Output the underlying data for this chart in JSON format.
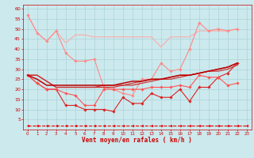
{
  "background_color": "#cce9ed",
  "grid_color": "#aad4d9",
  "xlabel": "Vent moyen/en rafales ( km/h )",
  "xlim": [
    -0.5,
    23.5
  ],
  "ylim": [
    0,
    62
  ],
  "yticks": [
    5,
    10,
    15,
    20,
    25,
    30,
    35,
    40,
    45,
    50,
    55,
    60
  ],
  "xticks": [
    0,
    1,
    2,
    3,
    4,
    5,
    6,
    7,
    8,
    9,
    10,
    11,
    12,
    13,
    14,
    15,
    16,
    17,
    18,
    19,
    20,
    21,
    22,
    23
  ],
  "series": [
    {
      "color": "#ffaaaa",
      "lw": 0.8,
      "marker": null,
      "data": [
        [
          0,
          57
        ],
        [
          1,
          48
        ],
        [
          2,
          44
        ],
        [
          3,
          49
        ],
        [
          4,
          43
        ],
        [
          5,
          47
        ],
        [
          6,
          47
        ],
        [
          7,
          46
        ],
        [
          8,
          46
        ],
        [
          9,
          46
        ],
        [
          10,
          46
        ],
        [
          11,
          46
        ],
        [
          12,
          46
        ],
        [
          13,
          46
        ],
        [
          14,
          41
        ],
        [
          15,
          46
        ],
        [
          16,
          46
        ],
        [
          17,
          46
        ],
        [
          18,
          49
        ],
        [
          19,
          49
        ],
        [
          20,
          49
        ],
        [
          21,
          49
        ],
        [
          22,
          50
        ]
      ]
    },
    {
      "color": "#ff8888",
      "lw": 0.8,
      "marker": "D",
      "markersize": 1.8,
      "data": [
        [
          0,
          57
        ],
        [
          1,
          48
        ],
        [
          2,
          44
        ],
        [
          3,
          49
        ],
        [
          4,
          38
        ],
        [
          5,
          34
        ],
        [
          6,
          34
        ],
        [
          7,
          35
        ],
        [
          8,
          21
        ],
        [
          9,
          20
        ],
        [
          10,
          18
        ],
        [
          11,
          17
        ],
        [
          12,
          25
        ],
        [
          13,
          25
        ],
        [
          14,
          33
        ],
        [
          15,
          29
        ],
        [
          16,
          30
        ],
        [
          17,
          40
        ],
        [
          18,
          53
        ],
        [
          19,
          49
        ],
        [
          20,
          50
        ],
        [
          21,
          49
        ],
        [
          22,
          50
        ]
      ]
    },
    {
      "color": "#cc3333",
      "lw": 0.9,
      "marker": null,
      "data": [
        [
          0,
          27
        ],
        [
          1,
          27
        ],
        [
          2,
          24
        ],
        [
          3,
          21
        ],
        [
          4,
          21
        ],
        [
          5,
          21
        ],
        [
          6,
          21
        ],
        [
          7,
          21
        ],
        [
          8,
          21
        ],
        [
          9,
          21
        ],
        [
          10,
          22
        ],
        [
          11,
          22
        ],
        [
          12,
          23
        ],
        [
          13,
          24
        ],
        [
          14,
          25
        ],
        [
          15,
          25
        ],
        [
          16,
          26
        ],
        [
          17,
          27
        ],
        [
          18,
          28
        ],
        [
          19,
          29
        ],
        [
          20,
          29
        ],
        [
          21,
          30
        ],
        [
          22,
          32
        ]
      ]
    },
    {
      "color": "#cc3333",
      "lw": 0.9,
      "marker": null,
      "data": [
        [
          0,
          27
        ],
        [
          1,
          27
        ],
        [
          2,
          24
        ],
        [
          3,
          21
        ],
        [
          4,
          21
        ],
        [
          5,
          21
        ],
        [
          6,
          21
        ],
        [
          7,
          21
        ],
        [
          8,
          22
        ],
        [
          9,
          22
        ],
        [
          10,
          22
        ],
        [
          11,
          23
        ],
        [
          12,
          24
        ],
        [
          13,
          25
        ],
        [
          14,
          25
        ],
        [
          15,
          26
        ],
        [
          16,
          27
        ],
        [
          17,
          27
        ],
        [
          18,
          28
        ],
        [
          19,
          29
        ],
        [
          20,
          30
        ],
        [
          21,
          31
        ],
        [
          22,
          33
        ]
      ]
    },
    {
      "color": "#dd2222",
      "lw": 0.8,
      "marker": "D",
      "markersize": 1.8,
      "data": [
        [
          0,
          27
        ],
        [
          1,
          23
        ],
        [
          2,
          20
        ],
        [
          3,
          20
        ],
        [
          4,
          12
        ],
        [
          5,
          12
        ],
        [
          6,
          10
        ],
        [
          7,
          10
        ],
        [
          8,
          10
        ],
        [
          9,
          9
        ],
        [
          10,
          16
        ],
        [
          11,
          13
        ],
        [
          12,
          13
        ],
        [
          13,
          18
        ],
        [
          14,
          16
        ],
        [
          15,
          16
        ],
        [
          16,
          20
        ],
        [
          17,
          14
        ],
        [
          18,
          21
        ],
        [
          19,
          21
        ],
        [
          20,
          26
        ],
        [
          21,
          28
        ],
        [
          22,
          33
        ]
      ]
    },
    {
      "color": "#ff5555",
      "lw": 0.8,
      "marker": "D",
      "markersize": 1.8,
      "data": [
        [
          0,
          27
        ],
        [
          1,
          23
        ],
        [
          2,
          20
        ],
        [
          3,
          20
        ],
        [
          4,
          18
        ],
        [
          5,
          17
        ],
        [
          6,
          12
        ],
        [
          7,
          12
        ],
        [
          8,
          20
        ],
        [
          9,
          20
        ],
        [
          10,
          20
        ],
        [
          11,
          20
        ],
        [
          12,
          20
        ],
        [
          13,
          21
        ],
        [
          14,
          21
        ],
        [
          15,
          21
        ],
        [
          16,
          22
        ],
        [
          17,
          21
        ],
        [
          18,
          27
        ],
        [
          19,
          26
        ],
        [
          20,
          26
        ],
        [
          21,
          22
        ],
        [
          22,
          23
        ]
      ]
    },
    {
      "color": "#bb0000",
      "lw": 1.1,
      "marker": null,
      "data": [
        [
          0,
          27
        ],
        [
          1,
          25
        ],
        [
          2,
          22
        ],
        [
          3,
          22
        ],
        [
          4,
          22
        ],
        [
          5,
          22
        ],
        [
          6,
          22
        ],
        [
          7,
          22
        ],
        [
          8,
          22
        ],
        [
          9,
          22
        ],
        [
          10,
          23
        ],
        [
          11,
          24
        ],
        [
          12,
          24
        ],
        [
          13,
          25
        ],
        [
          14,
          25
        ],
        [
          15,
          26
        ],
        [
          16,
          27
        ],
        [
          17,
          27
        ],
        [
          18,
          28
        ],
        [
          19,
          29
        ],
        [
          20,
          30
        ],
        [
          21,
          31
        ],
        [
          22,
          33
        ]
      ]
    },
    {
      "color": "#ee0000",
      "lw": 0.8,
      "marker": "<",
      "markersize": 2.0,
      "linestyle": "dashed",
      "data": [
        [
          0,
          2
        ],
        [
          1,
          2
        ],
        [
          2,
          2
        ],
        [
          3,
          2
        ],
        [
          4,
          2
        ],
        [
          5,
          2
        ],
        [
          6,
          2
        ],
        [
          7,
          2
        ],
        [
          8,
          2
        ],
        [
          9,
          2
        ],
        [
          10,
          2
        ],
        [
          11,
          2
        ],
        [
          12,
          2
        ],
        [
          13,
          2
        ],
        [
          14,
          2
        ],
        [
          15,
          2
        ],
        [
          16,
          2
        ],
        [
          17,
          2
        ],
        [
          18,
          2
        ],
        [
          19,
          2
        ],
        [
          20,
          2
        ],
        [
          21,
          2
        ],
        [
          22,
          2
        ],
        [
          23,
          2
        ]
      ]
    }
  ]
}
